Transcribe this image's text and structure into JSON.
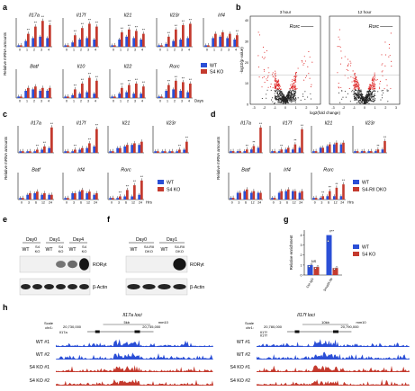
{
  "panel_labels": [
    "a",
    "b",
    "c",
    "d",
    "e",
    "f",
    "g",
    "h"
  ],
  "colors": {
    "wt": "#2b4fd6",
    "ko": "#c43a2e",
    "black": "#111111",
    "gray": "#9a9a9a",
    "red_dots": "#d22"
  },
  "panel_a": {
    "ylabel": "Relative mRNA amounts",
    "xlabel": "Days",
    "xticks": [
      "0",
      "1",
      "2",
      "3",
      "4"
    ],
    "genes": [
      "Il17a",
      "Il17f",
      "Il21",
      "Il23r",
      "Irf4",
      "Batf",
      "Il10",
      "Il22",
      "Rorc"
    ],
    "legend": [
      "WT",
      "S4 KO"
    ]
  },
  "panel_b": {
    "titles": [
      "3 hour",
      "12 hour"
    ],
    "gene_label": "Rorc",
    "ylabel": "-log10(p-value)",
    "xlabel": "log2(fold change)",
    "xticks": [
      "-3",
      "-2",
      "-1",
      "0",
      "1",
      "2",
      "3"
    ],
    "yticks": [
      "0",
      "10",
      "20",
      "30",
      "40"
    ]
  },
  "panel_c": {
    "ylabel": "Relative mRNA amounts",
    "xlabel": "Hrs",
    "xticks": [
      "0",
      "3",
      "6",
      "12",
      "24"
    ],
    "genes": [
      "Il17a",
      "Il17f",
      "Il21",
      "Il23r",
      "Batf",
      "Irf4",
      "Rorc"
    ],
    "legend": [
      "WT",
      "S4 KO"
    ]
  },
  "panel_d": {
    "ylabel": "Relative mRNA amounts",
    "xlabel": "Hrs",
    "xticks": [
      "0",
      "3",
      "6",
      "12",
      "24"
    ],
    "genes": [
      "Il17a",
      "Il17f",
      "Il21",
      "Il23r",
      "Batf",
      "Irf4",
      "Rorc"
    ],
    "legend": [
      "WT",
      "S4-RII DKO"
    ]
  },
  "panel_e": {
    "days": [
      "Day0",
      "Day1",
      "Day4"
    ],
    "lanes": [
      "WT",
      "S4 KO",
      "WT",
      "S4 KO",
      "WT",
      "S4 KO"
    ],
    "bands": [
      "RORγt",
      "β-Actin"
    ]
  },
  "panel_f": {
    "days": [
      "Day0",
      "Day1"
    ],
    "lanes": [
      "WT",
      "S4-RII DKO",
      "WT",
      "S4-RII DKO"
    ],
    "bands": [
      "RORγt",
      "β-Actin"
    ]
  },
  "panel_g": {
    "ylabel": "Relative enrichment",
    "yticks": [
      "0",
      "1",
      "2",
      "3",
      "4"
    ],
    "categories": [
      "Ctrl IgG",
      "Smad4 Ab"
    ],
    "annotations": [
      "NS",
      "**"
    ],
    "legend": [
      "WT",
      "S4 KO"
    ]
  },
  "panel_h": {
    "loci": [
      "Il17a loci",
      "Il17f loci"
    ],
    "scale_label": "Scale",
    "chr_label": "chr1:",
    "left_scale": "5kb",
    "left_coords": [
      "20,730,000",
      "20,735,000"
    ],
    "left_gene": "Il17a",
    "left_build": "mm10",
    "right_scale": "10kb",
    "right_coords": [
      "20,780,000",
      "20,790,000"
    ],
    "right_genes": [
      "Il17f",
      "Il17f"
    ],
    "right_build": "mm10",
    "tracks": [
      "WT #1",
      "WT #2",
      "S4 KO #1",
      "S4 KO #2"
    ]
  },
  "chart_data": [
    {
      "type": "bar",
      "panel": "a",
      "categories": [
        "0",
        "1",
        "2",
        "3",
        "4"
      ],
      "series": [
        {
          "name": "WT",
          "values": [
            1,
            4,
            6,
            7,
            6
          ]
        },
        {
          "name": "S4 KO",
          "values": [
            1,
            9,
            14,
            18,
            15
          ]
        }
      ]
    },
    {
      "type": "bar",
      "panel": "g",
      "categories": [
        "Ctrl IgG",
        "Smad4 Ab"
      ],
      "series": [
        {
          "name": "WT",
          "values": [
            1.0,
            4.0
          ]
        },
        {
          "name": "S4 KO",
          "values": [
            0.8,
            0.7
          ]
        }
      ],
      "ylabel": "Relative enrichment",
      "ylim": [
        0,
        4.5
      ]
    }
  ]
}
